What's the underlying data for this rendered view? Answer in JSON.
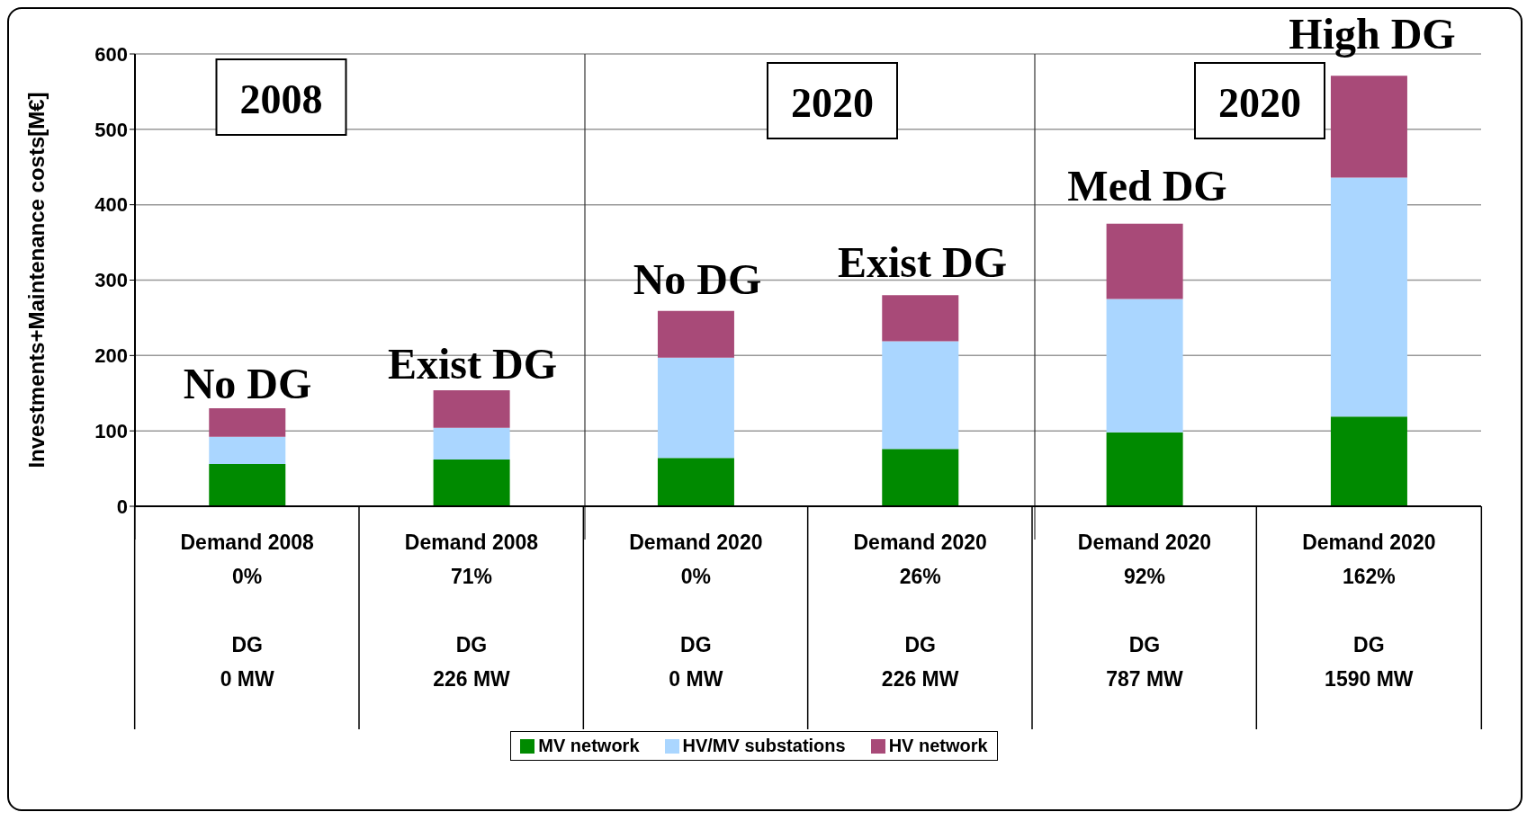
{
  "chart_data": {
    "type": "bar",
    "stacked": true,
    "ylabel": "Investments+Maintenance costs[M€]",
    "categories": [
      "Demand 2008\n0%\n\nDG\n0 MW",
      "Demand 2008\n71%\n\nDG\n226 MW",
      "Demand 2020\n0%\n\nDG\n0 MW",
      "Demand 2020\n26%\n\nDG\n226 MW",
      "Demand 2020\n92%\n\nDG\n787 MW",
      "Demand 2020\n162%\n\nDG\n1590 MW"
    ],
    "series": [
      {
        "name": "MV network",
        "color": "#008a00",
        "values": [
          56,
          62,
          64,
          76,
          98,
          119
        ]
      },
      {
        "name": "HV/MV substations",
        "color": "#aad6ff",
        "values": [
          36,
          42,
          133,
          143,
          177,
          317
        ]
      },
      {
        "name": "HV network",
        "color": "#a84a78",
        "values": [
          38,
          50,
          62,
          61,
          100,
          135
        ]
      }
    ],
    "ylim": [
      0,
      600
    ],
    "yticks": [
      0,
      100,
      200,
      300,
      400,
      500,
      600
    ],
    "grid": "y",
    "legend": "bottom",
    "annotations": [
      "2008",
      "2020",
      "2020",
      "No DG",
      "Exist DG",
      "No DG",
      "Exist DG",
      "Med DG",
      "High DG"
    ]
  }
}
